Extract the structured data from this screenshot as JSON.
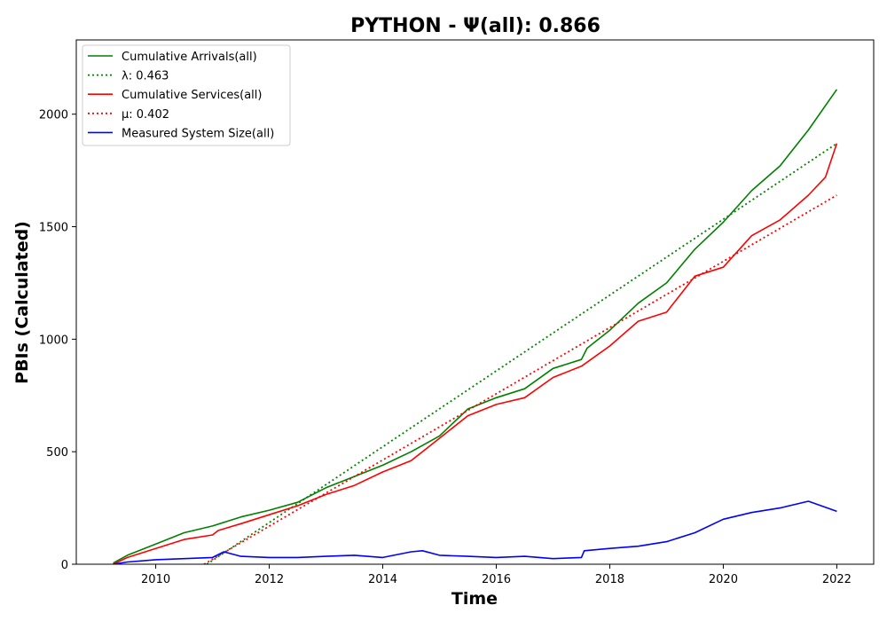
{
  "chart_data": {
    "type": "line",
    "title": "PYTHON -  Ψ(all): 0.866",
    "xlabel": "Time",
    "ylabel": "PBIs (Calculated)",
    "xlim": [
      2008.6,
      2022.65
    ],
    "ylim": [
      0,
      2330
    ],
    "xticks": [
      2010,
      2012,
      2014,
      2016,
      2018,
      2020,
      2022
    ],
    "yticks": [
      0,
      500,
      1000,
      1500,
      2000
    ],
    "grid": false,
    "legend_position": "upper-left",
    "series": [
      {
        "name": "Cumulative Arrivals(all)",
        "style": "solid",
        "color": "#008000",
        "x": [
          2009.25,
          2009.5,
          2010.0,
          2010.5,
          2011.0,
          2011.5,
          2012.0,
          2012.5,
          2013.0,
          2013.5,
          2014.0,
          2014.5,
          2015.0,
          2015.5,
          2016.0,
          2016.5,
          2017.0,
          2017.5,
          2017.6,
          2018.0,
          2018.5,
          2019.0,
          2019.5,
          2020.0,
          2020.5,
          2021.0,
          2021.5,
          2022.0
        ],
        "y": [
          5,
          40,
          90,
          140,
          170,
          210,
          240,
          275,
          340,
          390,
          440,
          500,
          570,
          690,
          740,
          780,
          870,
          910,
          960,
          1040,
          1160,
          1250,
          1400,
          1520,
          1660,
          1770,
          1930,
          2110
        ]
      },
      {
        "name": "λ: 0.463",
        "style": "dotted",
        "color": "#008000",
        "x": [
          2010.9,
          2022.0
        ],
        "y": [
          0,
          1870
        ]
      },
      {
        "name": "Cumulative Services(all)",
        "style": "solid",
        "color": "#ff0000",
        "x": [
          2009.25,
          2009.5,
          2010.0,
          2010.5,
          2011.0,
          2011.1,
          2011.5,
          2012.0,
          2012.5,
          2013.0,
          2013.5,
          2014.0,
          2014.5,
          2015.0,
          2015.5,
          2016.0,
          2016.5,
          2017.0,
          2017.5,
          2018.0,
          2018.5,
          2019.0,
          2019.5,
          2020.0,
          2020.5,
          2021.0,
          2021.5,
          2021.8,
          2022.0
        ],
        "y": [
          0,
          30,
          70,
          110,
          130,
          150,
          180,
          220,
          260,
          310,
          350,
          410,
          460,
          560,
          660,
          710,
          740,
          830,
          880,
          970,
          1080,
          1120,
          1280,
          1320,
          1460,
          1530,
          1640,
          1720,
          1870
        ]
      },
      {
        "name": "μ: 0.402",
        "style": "dotted",
        "color": "#ff0000",
        "x": [
          2010.85,
          2022.0
        ],
        "y": [
          0,
          1640
        ]
      },
      {
        "name": "Measured System Size(all)",
        "style": "solid",
        "color": "#0000ff",
        "x": [
          2009.25,
          2009.5,
          2010.0,
          2010.5,
          2011.0,
          2011.2,
          2011.5,
          2012.0,
          2012.5,
          2013.0,
          2013.5,
          2014.0,
          2014.5,
          2014.7,
          2015.0,
          2015.5,
          2016.0,
          2016.5,
          2017.0,
          2017.5,
          2017.55,
          2018.0,
          2018.5,
          2019.0,
          2019.5,
          2020.0,
          2020.5,
          2021.0,
          2021.5,
          2022.0
        ],
        "y": [
          0,
          10,
          20,
          25,
          30,
          55,
          35,
          30,
          30,
          35,
          40,
          30,
          55,
          60,
          40,
          35,
          30,
          35,
          25,
          30,
          60,
          70,
          80,
          100,
          140,
          200,
          230,
          250,
          280,
          235
        ]
      }
    ]
  }
}
